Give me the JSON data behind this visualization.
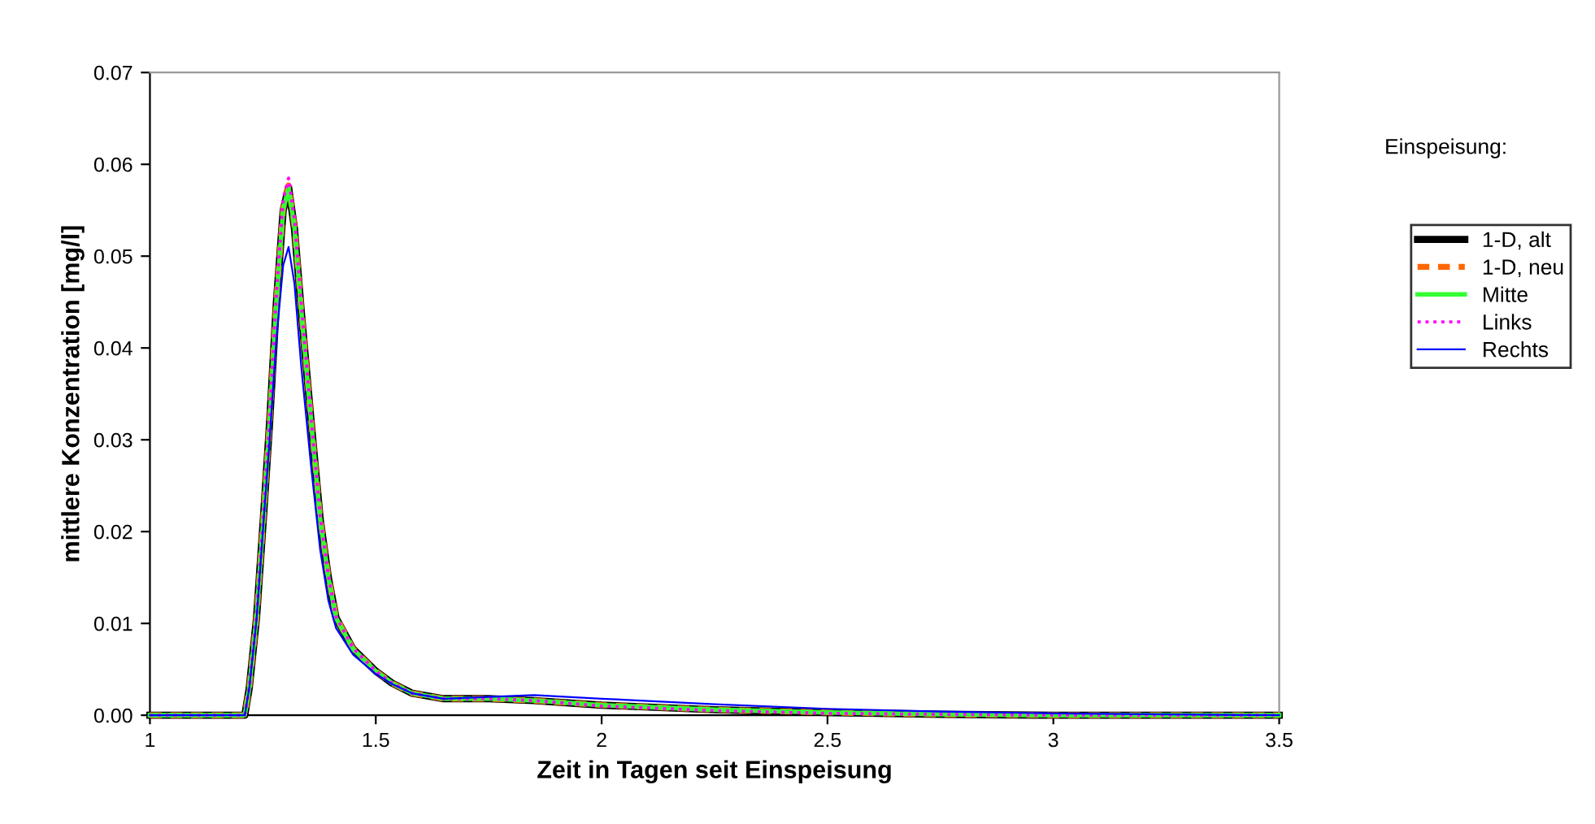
{
  "chart_data": {
    "type": "line",
    "xlabel": "Zeit in Tagen seit Einspeisung",
    "ylabel": "mittlere Konzentration [mg/l]",
    "legend_title": "Einspeisung:",
    "legend": "right",
    "grid": false,
    "xlim": [
      1,
      3.5
    ],
    "xticks": [
      1,
      1.5,
      2,
      2.5,
      3,
      3.5
    ],
    "ylim": [
      0,
      0.07
    ],
    "yticks": [
      {
        "value": 0,
        "label": "0.00"
      },
      {
        "value": 0.01,
        "label": "0.01"
      },
      {
        "value": 0.02,
        "label": "0.02"
      },
      {
        "value": 0.03,
        "label": "0.03"
      },
      {
        "value": 0.04,
        "label": "0.04"
      },
      {
        "value": 0.05,
        "label": "0.05"
      },
      {
        "value": 0.06,
        "label": "0.06"
      },
      {
        "value": 0.07,
        "label": "0.07"
      }
    ],
    "x": [
      1,
      1.2,
      1.21,
      1.22,
      1.236,
      1.251,
      1.265,
      1.28,
      1.295,
      1.307,
      1.32,
      1.335,
      1.357,
      1.377,
      1.395,
      1.412,
      1.45,
      1.5,
      1.536,
      1.58,
      1.65,
      1.75,
      1.85,
      2.0,
      2.25,
      2.5,
      2.75,
      3.0,
      3.5
    ],
    "series": [
      {
        "name": "1-D, alt",
        "color": "#000000",
        "line_style": "solid",
        "values": [
          0,
          0,
          0,
          0.003,
          0.0106,
          0.0213,
          0.0319,
          0.045,
          0.055,
          0.0575,
          0.053,
          0.044,
          0.0319,
          0.0213,
          0.015,
          0.0106,
          0.0072,
          0.0048,
          0.0035,
          0.0024,
          0.0018,
          0.0018,
          0.0016,
          0.0011,
          0.0006,
          0.0003,
          0.0001,
          0,
          0
        ]
      },
      {
        "name": "1-D, neu",
        "color": "#ff6600",
        "line_style": "dashed",
        "values": [
          0,
          0,
          0,
          0.003,
          0.0106,
          0.0214,
          0.032,
          0.0452,
          0.0552,
          0.0577,
          0.0532,
          0.0442,
          0.032,
          0.0214,
          0.0151,
          0.0107,
          0.0072,
          0.0048,
          0.0035,
          0.0024,
          0.0018,
          0.0018,
          0.0016,
          0.0011,
          0.0006,
          0.0003,
          0.0001,
          0,
          0
        ]
      },
      {
        "name": "Mitte",
        "color": "#33ff33",
        "line_style": "solid",
        "values": [
          0,
          0,
          0,
          0.003,
          0.0106,
          0.0213,
          0.0319,
          0.0451,
          0.0551,
          0.0574,
          0.0531,
          0.0441,
          0.0319,
          0.0213,
          0.015,
          0.0106,
          0.0072,
          0.0048,
          0.0035,
          0.0024,
          0.0018,
          0.0018,
          0.0016,
          0.0011,
          0.0006,
          0.0003,
          0.0001,
          0,
          0
        ]
      },
      {
        "name": "Links",
        "color": "#ff00ff",
        "line_style": "dotted",
        "values": [
          0,
          0,
          0,
          0.003,
          0.0107,
          0.0215,
          0.0322,
          0.0458,
          0.0562,
          0.0585,
          0.054,
          0.0448,
          0.0323,
          0.0216,
          0.0152,
          0.0107,
          0.0073,
          0.0048,
          0.0035,
          0.0024,
          0.0018,
          0.0018,
          0.0016,
          0.001,
          0.0005,
          0.0002,
          0.0001,
          0,
          0
        ]
      },
      {
        "name": "Rechts",
        "color": "#0000ff",
        "line_style": "solid",
        "values": [
          0,
          0,
          0,
          0.003,
          0.0104,
          0.0207,
          0.03,
          0.041,
          0.049,
          0.051,
          0.047,
          0.038,
          0.027,
          0.018,
          0.0125,
          0.0095,
          0.0066,
          0.0045,
          0.0034,
          0.0024,
          0.0018,
          0.002,
          0.0022,
          0.0018,
          0.0012,
          0.0007,
          0.0004,
          0.0002,
          0
        ]
      }
    ]
  }
}
